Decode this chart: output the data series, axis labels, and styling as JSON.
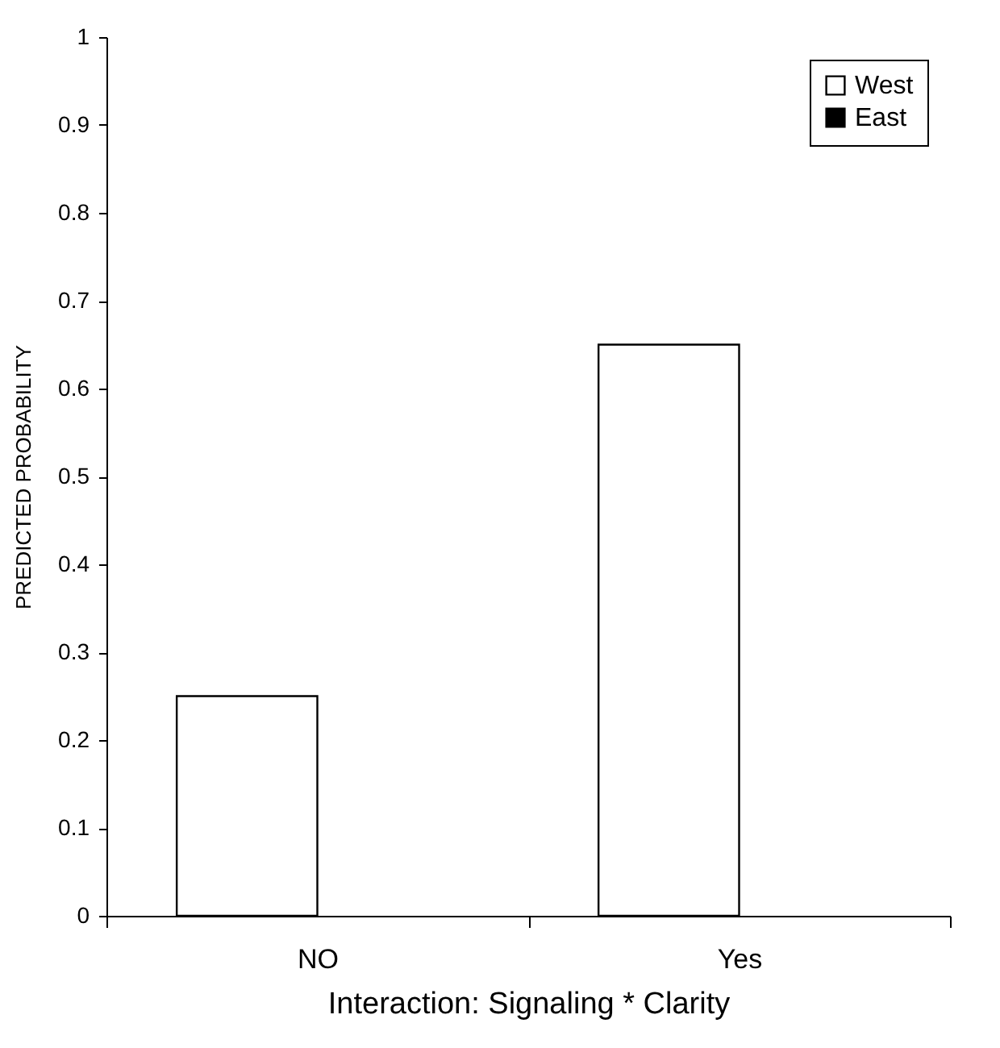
{
  "chart_data": {
    "type": "bar",
    "xlabel": "Interaction: Signaling * Clarity",
    "ylabel": "PREDICTED PROBABILITY",
    "categories": [
      "NO",
      "Yes"
    ],
    "series": [
      {
        "name": "West",
        "color": "#ffffff",
        "values": [
          0.25,
          0.65
        ]
      },
      {
        "name": "East",
        "color": "#000000",
        "values": [
          null,
          null
        ]
      }
    ],
    "ylim": [
      0,
      1
    ],
    "yticks": [
      0,
      0.1,
      0.2,
      0.3,
      0.4,
      0.5,
      0.6,
      0.7,
      0.8,
      0.9,
      1
    ],
    "grid": false,
    "legend": "top right"
  }
}
